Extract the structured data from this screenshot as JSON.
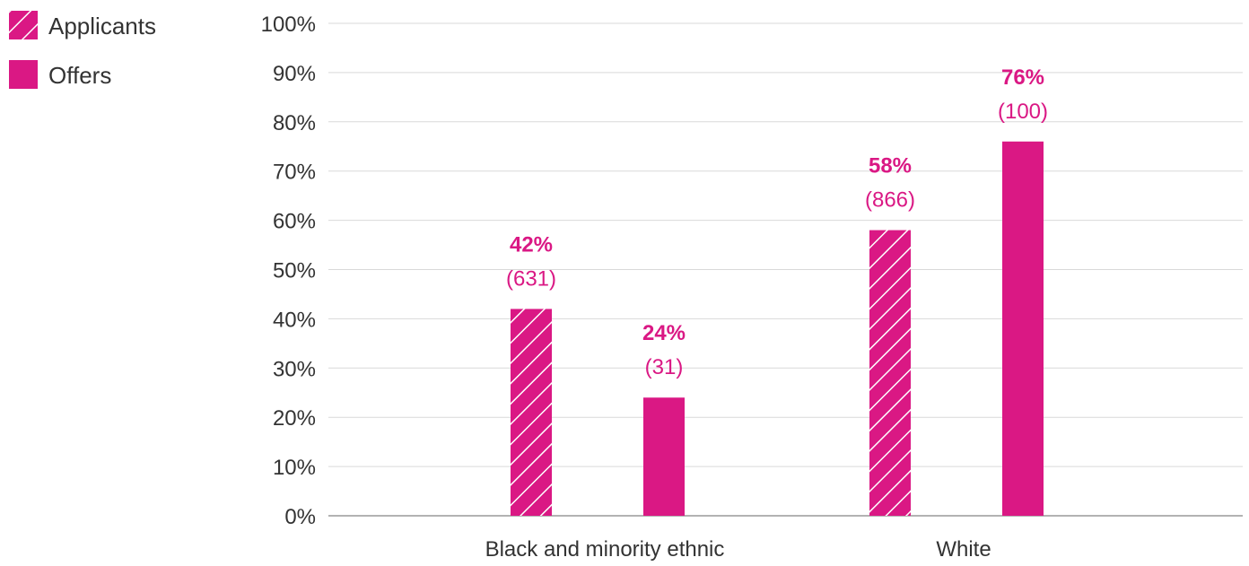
{
  "colors": {
    "accent": "#DA1884",
    "grid": "#D9D9D9",
    "axis": "#999999",
    "text": "#333333"
  },
  "legend": [
    {
      "label": "Applicants",
      "pattern": "hatched"
    },
    {
      "label": "Offers",
      "pattern": "solid"
    }
  ],
  "chart_data": {
    "type": "bar",
    "title": "",
    "xlabel": "",
    "ylabel": "",
    "categories": [
      "Black and minority ethnic",
      "White"
    ],
    "ylim": [
      0,
      100
    ],
    "yticks": [
      0,
      10,
      20,
      30,
      40,
      50,
      60,
      70,
      80,
      90,
      100
    ],
    "ytick_labels": [
      "0%",
      "10%",
      "20%",
      "30%",
      "40%",
      "50%",
      "60%",
      "70%",
      "80%",
      "90%",
      "100%"
    ],
    "grid": true,
    "legend_position": "top-left",
    "series": [
      {
        "name": "Applicants",
        "values": [
          42,
          58
        ],
        "counts": [
          "(631)",
          "(866)"
        ],
        "labels": [
          "42%",
          "58%"
        ]
      },
      {
        "name": "Offers",
        "values": [
          24,
          76
        ],
        "counts": [
          "(31)",
          "(100)"
        ],
        "labels": [
          "24%",
          "76%"
        ]
      }
    ]
  }
}
